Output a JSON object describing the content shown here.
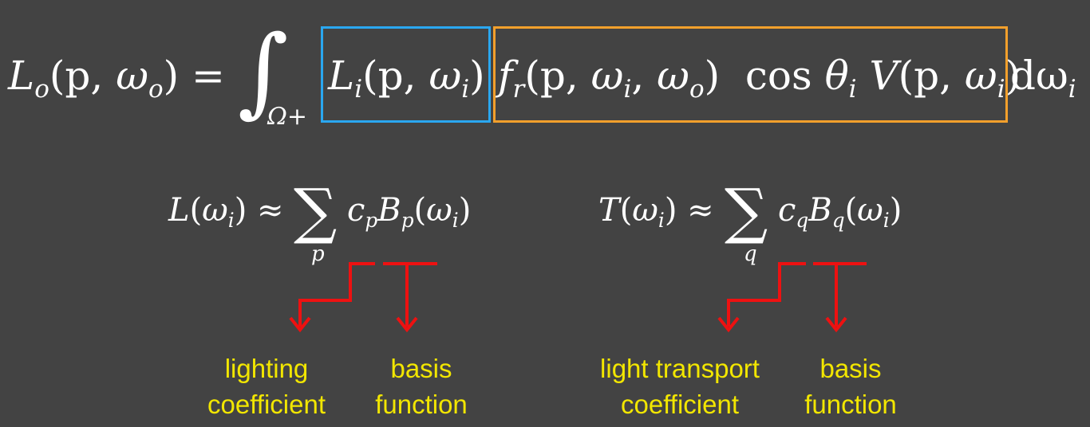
{
  "rendering_equation": {
    "lhs": [
      "L",
      "o",
      "(p, ",
      "ω",
      "o",
      ") ="
    ],
    "integral_domain": "Ω+",
    "lighting_term": [
      "L",
      "i",
      "(p, ",
      "ω",
      "i",
      ")"
    ],
    "transport_term": [
      "f",
      "r",
      "(p, ",
      "ω",
      "i",
      ", ",
      "ω",
      "o",
      ")  cos ",
      "θ",
      "i",
      " V",
      "(p, ",
      "ω",
      "i",
      ")"
    ],
    "differential": [
      "dω",
      "i"
    ],
    "colors": {
      "lighting_box": "#2aa7f0",
      "transport_box": "#f3a02c"
    }
  },
  "lighting_expansion": {
    "lhs": [
      "L",
      "(",
      "ω",
      "i",
      ") ≈"
    ],
    "sum_symbol": "∑",
    "sum_index": "p",
    "rhs": [
      "c",
      "p",
      "B",
      "p",
      "(",
      "ω",
      "i",
      ")"
    ]
  },
  "transport_expansion": {
    "lhs": [
      "T",
      "(",
      "ω",
      "i",
      ") ≈"
    ],
    "sum_symbol": "∑",
    "sum_index": "q",
    "rhs": [
      "c",
      "q",
      "B",
      "q",
      "(",
      "ω",
      "i",
      ")"
    ]
  },
  "labels": {
    "lighting_coefficient": [
      "lighting",
      "coefficient"
    ],
    "basis_function_left": [
      "basis",
      "function"
    ],
    "transport_coefficient": [
      "light transport",
      "coefficient"
    ],
    "basis_function_right": [
      "basis",
      "function"
    ]
  },
  "colors": {
    "arrow": "#ee1111",
    "label": "#f2e600",
    "background": "#434343"
  }
}
